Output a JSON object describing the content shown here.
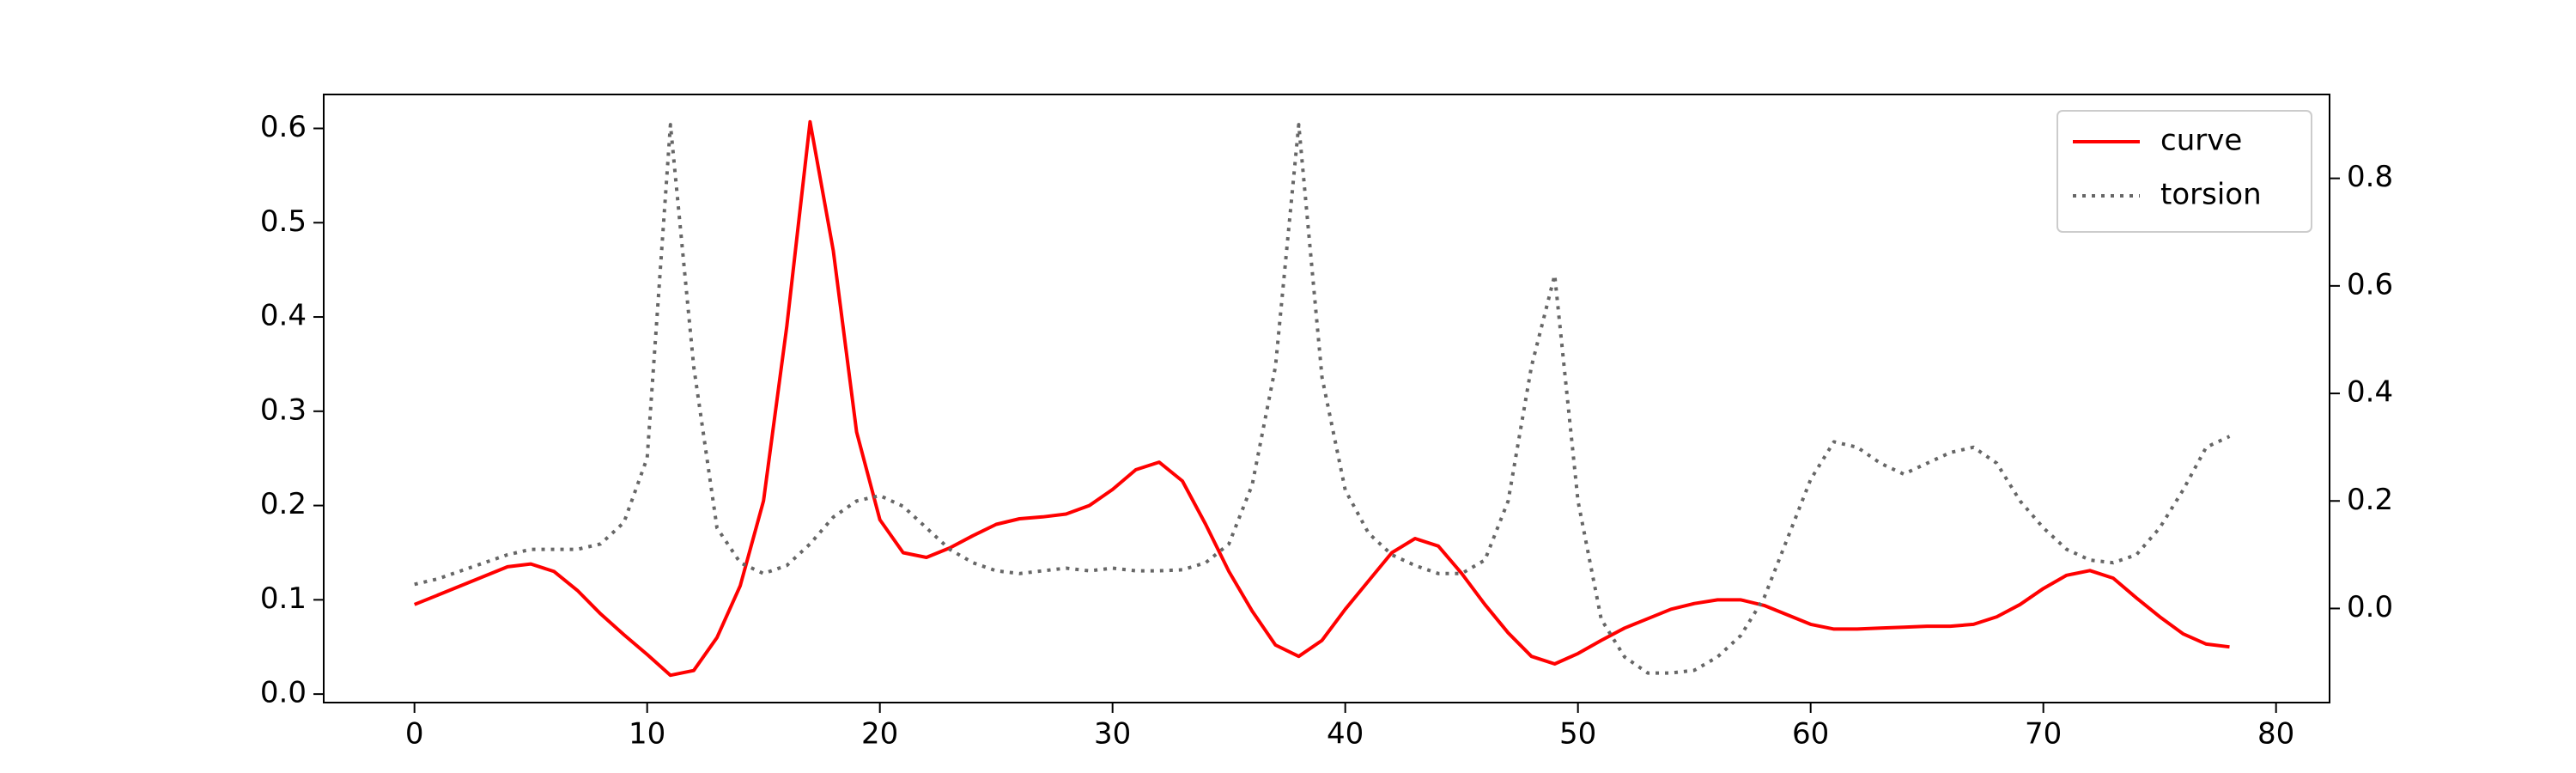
{
  "chart_data": {
    "type": "line",
    "x": [
      0,
      1,
      2,
      3,
      4,
      5,
      6,
      7,
      8,
      9,
      10,
      11,
      12,
      13,
      14,
      15,
      16,
      17,
      18,
      19,
      20,
      21,
      22,
      23,
      24,
      25,
      26,
      27,
      28,
      29,
      30,
      31,
      32,
      33,
      34,
      35,
      36,
      37,
      38,
      39,
      40,
      41,
      42,
      43,
      44,
      45,
      46,
      47,
      48,
      49,
      50,
      51,
      52,
      53,
      54,
      55,
      56,
      57,
      58,
      59,
      60,
      61,
      62,
      63,
      64,
      65,
      66,
      67,
      68,
      69,
      70,
      71,
      72,
      73,
      74,
      75,
      76,
      77,
      78
    ],
    "series": [
      {
        "name": "curve",
        "color": "#ff0000",
        "linestyle": "solid",
        "axis": "y",
        "values": [
          0.095,
          0.105,
          0.115,
          0.125,
          0.135,
          0.138,
          0.13,
          0.11,
          0.085,
          0.063,
          0.042,
          0.02,
          0.025,
          0.06,
          0.115,
          0.205,
          0.39,
          0.607,
          0.47,
          0.278,
          0.185,
          0.15,
          0.145,
          0.155,
          0.168,
          0.18,
          0.186,
          0.188,
          0.191,
          0.2,
          0.217,
          0.238,
          0.246,
          0.226,
          0.18,
          0.13,
          0.088,
          0.052,
          0.04,
          0.057,
          0.09,
          0.12,
          0.15,
          0.165,
          0.157,
          0.128,
          0.095,
          0.065,
          0.04,
          0.032,
          0.043,
          0.057,
          0.07,
          0.08,
          0.09,
          0.096,
          0.1,
          0.1,
          0.094,
          0.084,
          0.074,
          0.069,
          0.069,
          0.07,
          0.071,
          0.072,
          0.072,
          0.074,
          0.082,
          0.095,
          0.112,
          0.126,
          0.131,
          0.123,
          0.102,
          0.082,
          0.064,
          0.053,
          0.05
        ]
      },
      {
        "name": "torsion",
        "color": "#666666",
        "linestyle": "dotted",
        "axis": "y2",
        "values": [
          0.045,
          0.055,
          0.07,
          0.085,
          0.1,
          0.11,
          0.11,
          0.11,
          0.12,
          0.16,
          0.28,
          0.9,
          0.45,
          0.15,
          0.085,
          0.065,
          0.08,
          0.12,
          0.17,
          0.2,
          0.21,
          0.19,
          0.15,
          0.11,
          0.085,
          0.07,
          0.065,
          0.07,
          0.075,
          0.07,
          0.075,
          0.07,
          0.07,
          0.072,
          0.085,
          0.12,
          0.23,
          0.45,
          0.9,
          0.43,
          0.22,
          0.14,
          0.1,
          0.08,
          0.065,
          0.065,
          0.09,
          0.2,
          0.45,
          0.62,
          0.2,
          -0.02,
          -0.09,
          -0.12,
          -0.12,
          -0.115,
          -0.09,
          -0.05,
          0.02,
          0.13,
          0.24,
          0.31,
          0.3,
          0.27,
          0.25,
          0.27,
          0.29,
          0.3,
          0.27,
          0.2,
          0.15,
          0.11,
          0.09,
          0.085,
          0.1,
          0.15,
          0.22,
          0.3,
          0.32
        ]
      }
    ],
    "xlim": [
      -3.9,
      82.3
    ],
    "xticks": [
      0,
      10,
      20,
      30,
      40,
      50,
      60,
      70,
      80
    ],
    "ylim": [
      -0.009,
      0.636
    ],
    "yticks": [
      {
        "value": 0,
        "label": "0.0"
      },
      0.1,
      0.2,
      0.3,
      0.4,
      0.5,
      0.6
    ],
    "y2lim": [
      -0.175,
      0.956
    ],
    "y2ticks": [
      {
        "value": 0,
        "label": "0.0"
      },
      0.2,
      0.4,
      0.6,
      0.8
    ],
    "legend": "upper right"
  }
}
